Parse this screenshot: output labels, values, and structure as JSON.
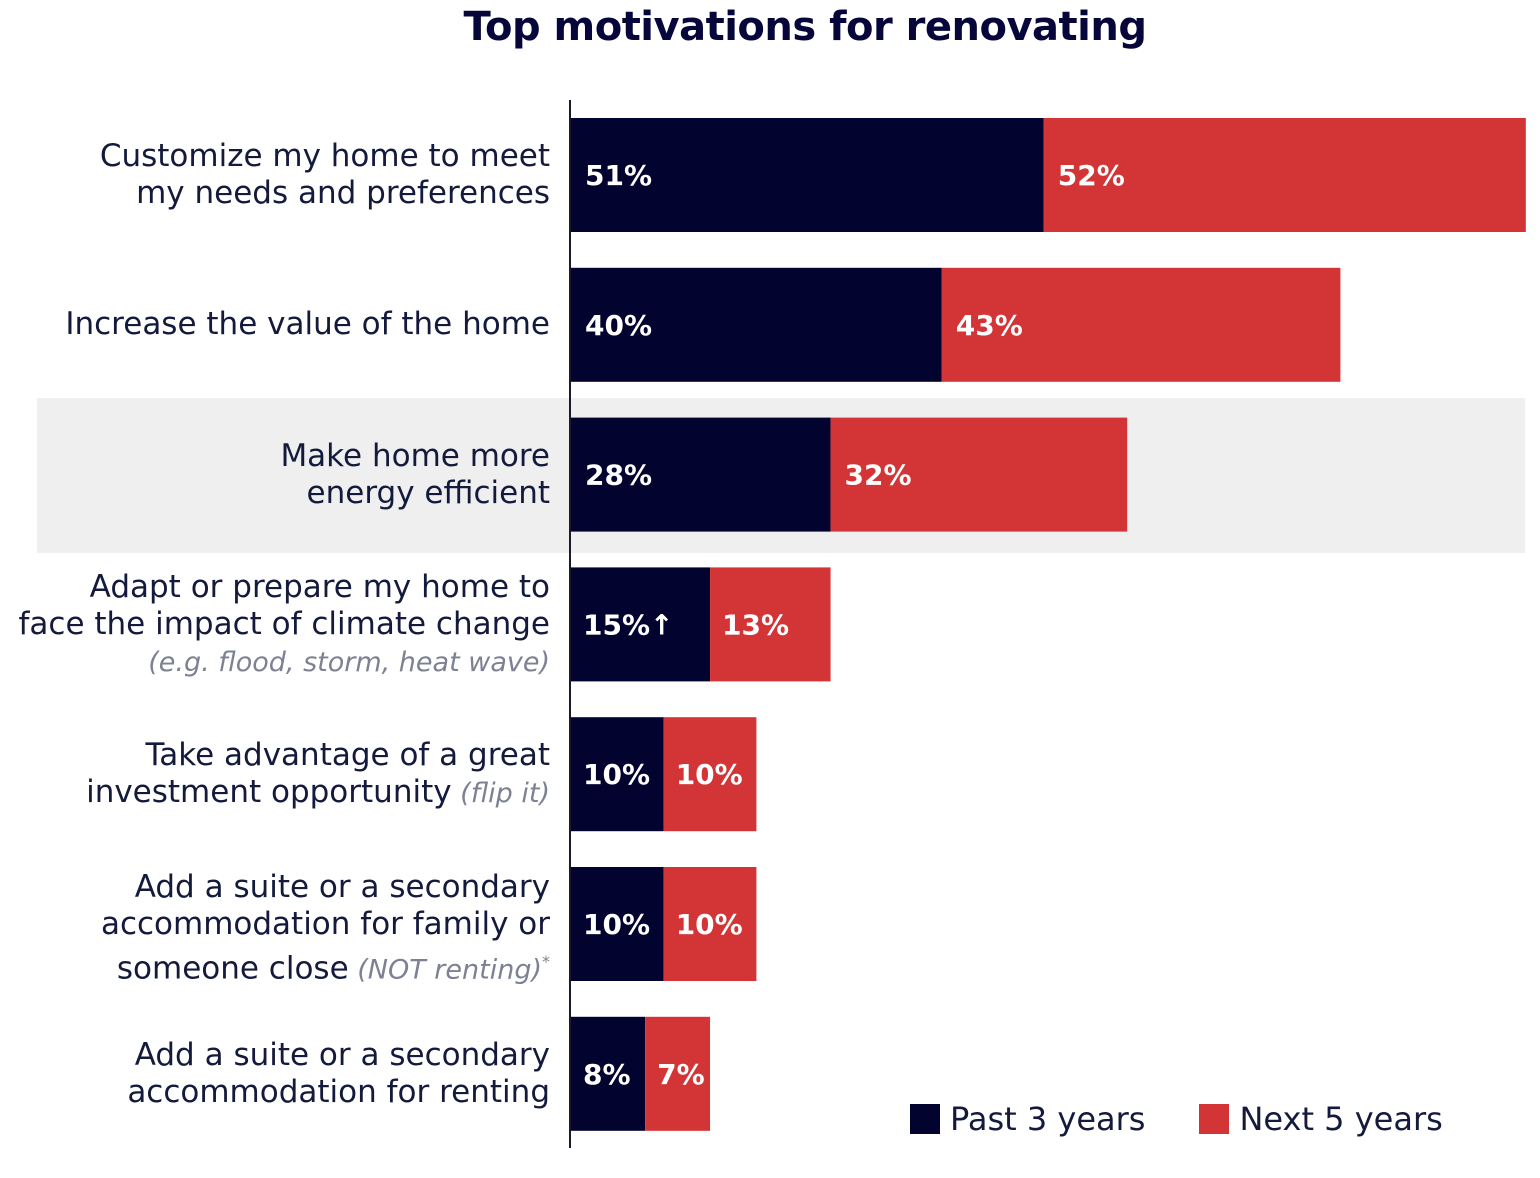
{
  "chart_data": {
    "type": "bar",
    "orientation": "horizontal",
    "title": "Top motivations for renovating",
    "categories": [
      {
        "label": "Customize my home to meet my needs and preferences",
        "lines": [
          "Customize my home to meet",
          "my needs and preferences"
        ],
        "note": ""
      },
      {
        "label": "Increase the value of the home",
        "lines": [
          "Increase the value of the home"
        ],
        "note": ""
      },
      {
        "label": "Make home more energy efficient",
        "lines": [
          "Make home more",
          "energy efficient"
        ],
        "note": "",
        "highlighted": true
      },
      {
        "label": "Adapt or prepare my home to face the impact of climate change",
        "lines": [
          "Adapt or prepare my home to",
          "face the impact of climate change"
        ],
        "note": "(e.g. flood, storm, heat wave)"
      },
      {
        "label": "Take advantage of a great investment opportunity",
        "lines": [
          "Take advantage of a great",
          "investment opportunity"
        ],
        "note": "(flip it)"
      },
      {
        "label": "Add a suite or a secondary accommodation for family or someone close",
        "lines": [
          "Add a suite or a secondary",
          "accommodation for family or",
          "someone close"
        ],
        "note": "(NOT renting)",
        "sup": "*"
      },
      {
        "label": "Add a suite or a secondary accommodation for renting",
        "lines": [
          "Add a suite or a secondary",
          "accommodation for renting"
        ],
        "note": ""
      }
    ],
    "series": [
      {
        "name": "Past 3 years",
        "color": "#03032f",
        "values": [
          51,
          40,
          28,
          15,
          10,
          10,
          8
        ],
        "labels": [
          "51%",
          "40%",
          "28%",
          "15%↑",
          "10%",
          "10%",
          "8%"
        ]
      },
      {
        "name": "Next 5 years",
        "color": "#d33436",
        "values": [
          52,
          43,
          32,
          13,
          10,
          10,
          7
        ],
        "labels": [
          "52%",
          "43%",
          "32%",
          "13%",
          "10%",
          "10%",
          "7%"
        ]
      }
    ],
    "stacked": true,
    "legend": "bottom-right",
    "grid": false
  }
}
